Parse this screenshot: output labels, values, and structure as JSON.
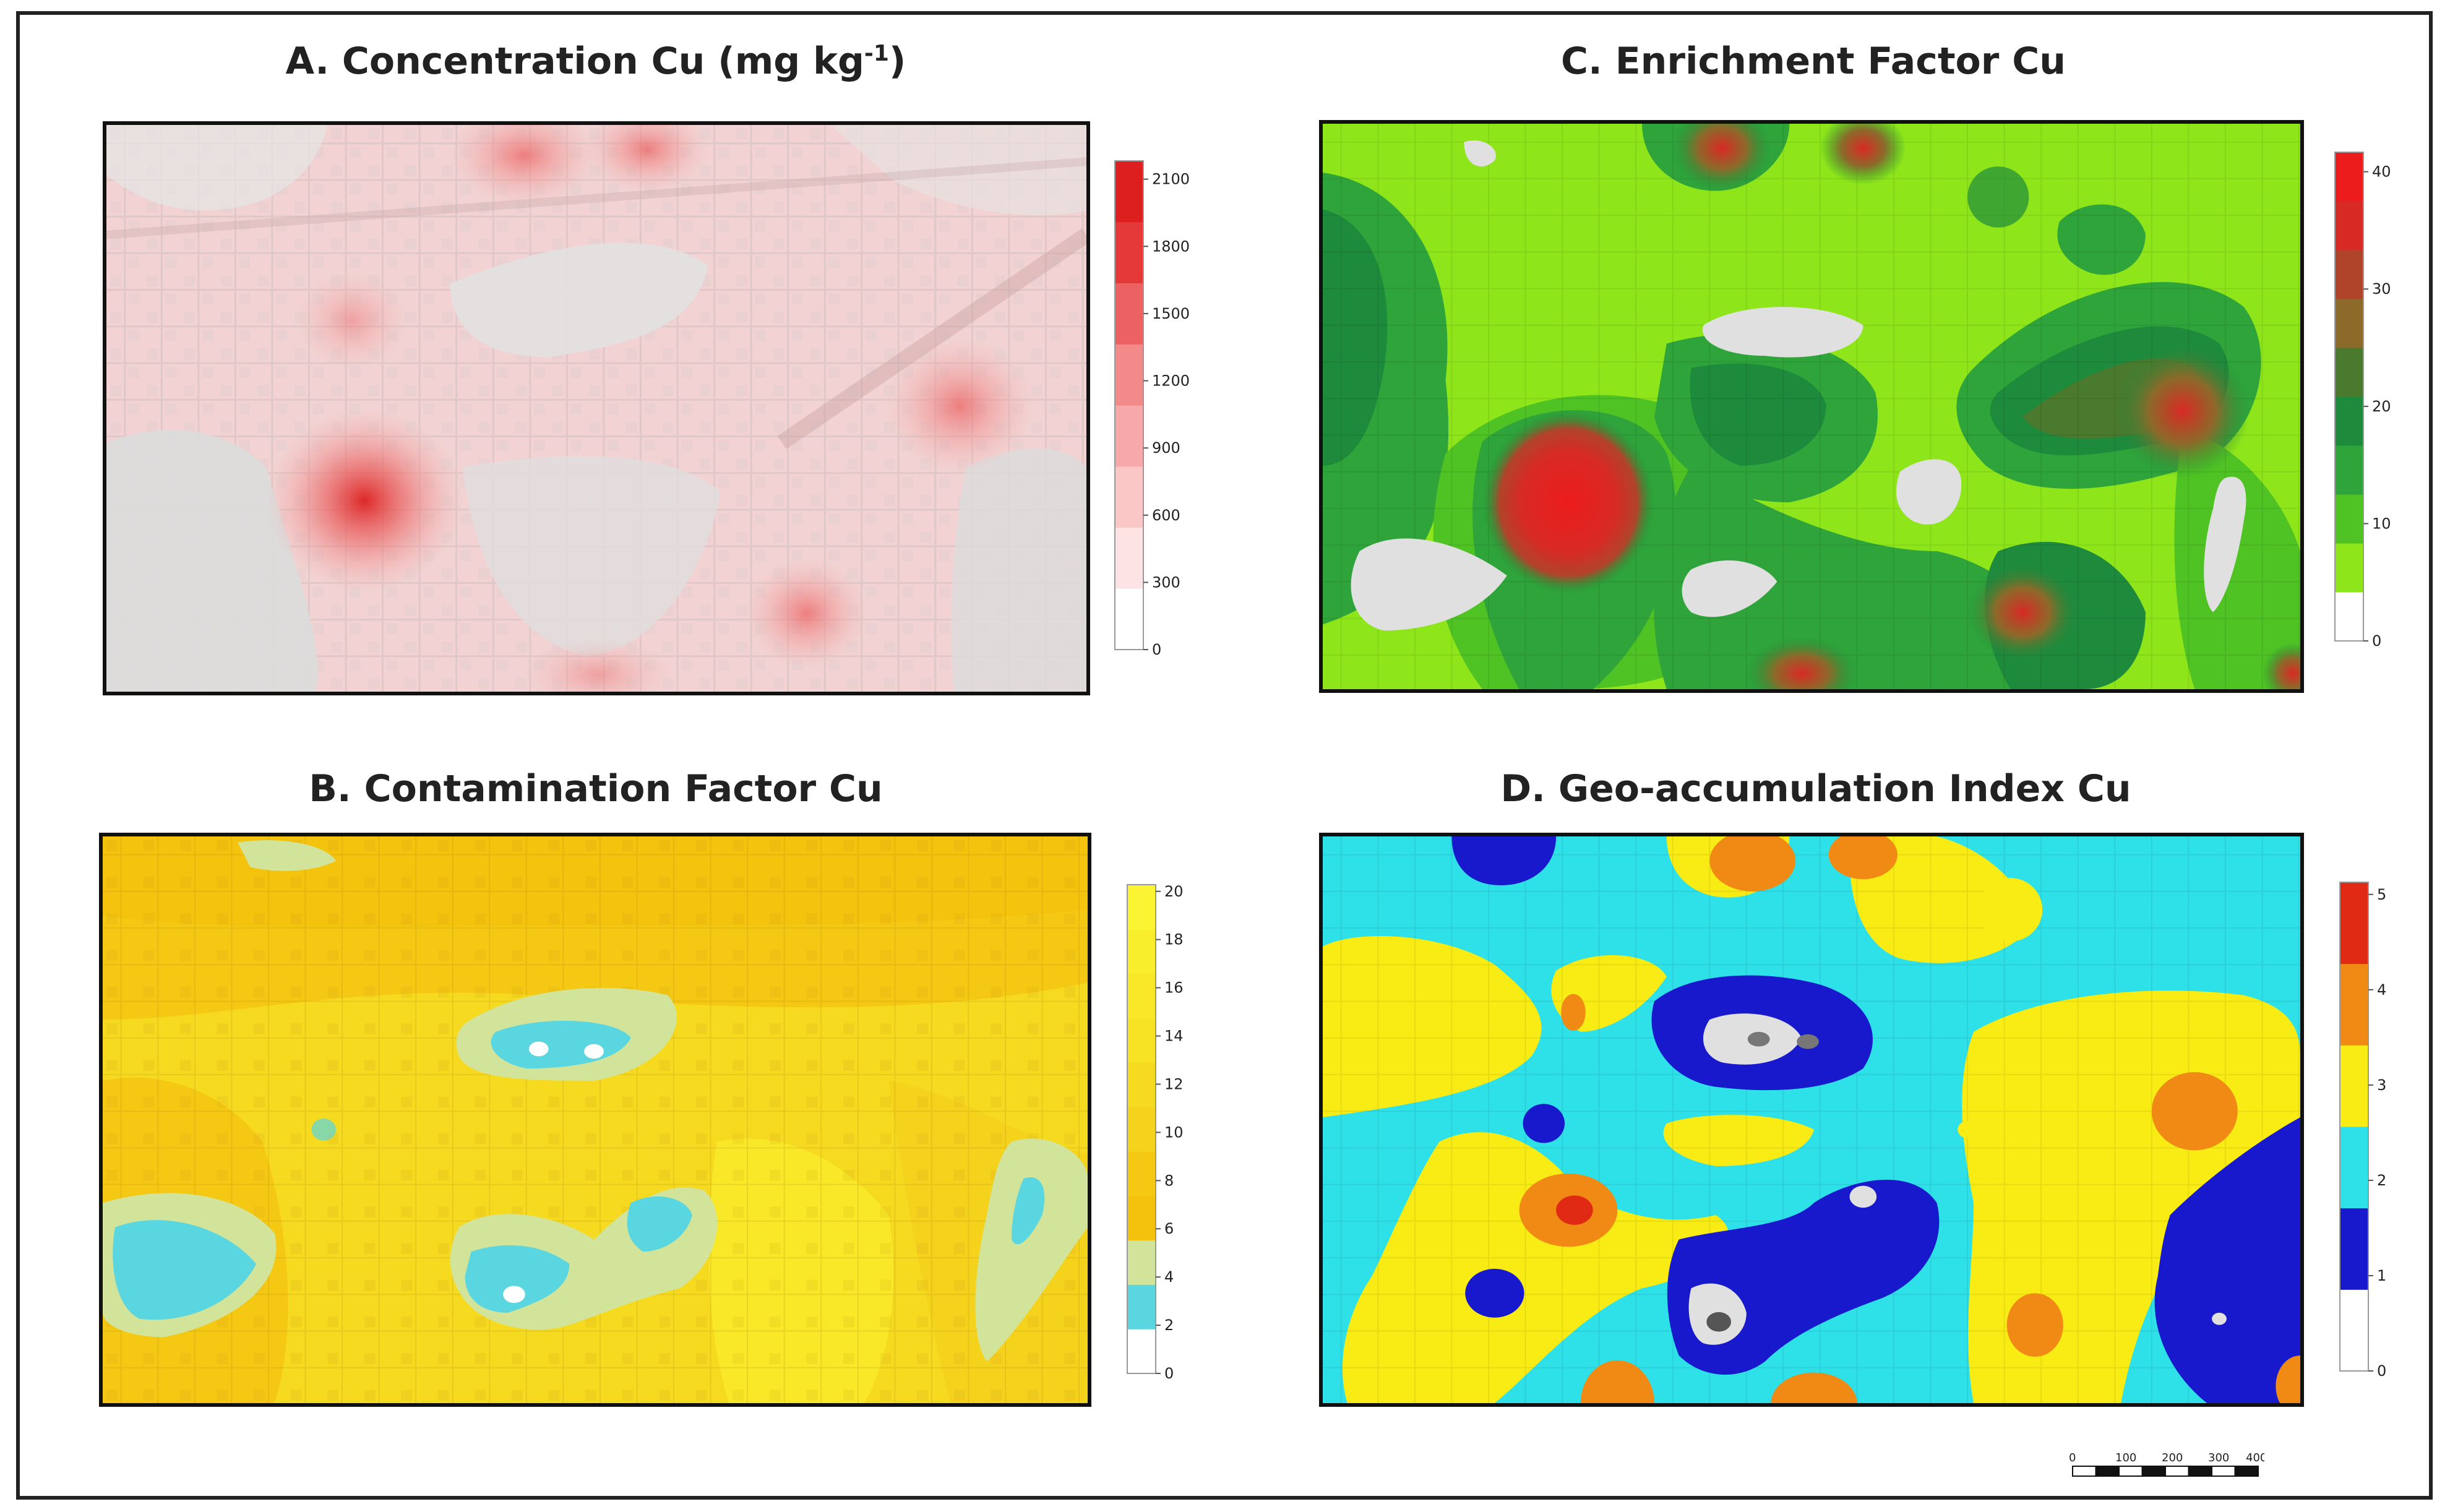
{
  "panels": {
    "A": {
      "title": "A. Concentration Cu (mg kg",
      "title_sup": "-1",
      "title_close": ")",
      "legend_ticks": [
        "0",
        "300",
        "600",
        "900",
        "1200",
        "1500",
        "1800",
        "2100"
      ],
      "legend_colors": [
        "#ffffff",
        "#fde3e3",
        "#fbc6c6",
        "#f7a8a8",
        "#f28a8a",
        "#ec6262",
        "#e53939",
        "#dd1f1f"
      ]
    },
    "B": {
      "title": "B. Contamination Factor Cu",
      "legend_ticks": [
        "0",
        "2",
        "4",
        "6",
        "8",
        "10",
        "12",
        "14",
        "16",
        "18",
        "20"
      ],
      "legend_colors": [
        "#ffffff",
        "#5ad6e0",
        "#d2e49a",
        "#f4c20c",
        "#f5c814",
        "#f5d21c",
        "#f6da20",
        "#f7e224",
        "#f8e828",
        "#f9ee2c",
        "#fbf432"
      ]
    },
    "C": {
      "title": "C. Enrichment Factor Cu",
      "legend_ticks": [
        "0",
        "10",
        "20",
        "30",
        "40"
      ],
      "legend_colors": [
        "#ffffff",
        "#8ee61a",
        "#4fc224",
        "#2fa43a",
        "#1e8a3c",
        "#4a7a2e",
        "#8c6a2a",
        "#b0442a",
        "#d82a24",
        "#ec1c1c"
      ]
    },
    "D": {
      "title": "D. Geo-accumulation Index Cu",
      "legend_ticks": [
        "0",
        "1",
        "2",
        "3",
        "4",
        "5"
      ],
      "legend_colors": [
        "#ffffff",
        "#1818cc",
        "#2ee0e8",
        "#f8ec14",
        "#f08a14",
        "#e02a14"
      ]
    }
  },
  "scale_bar": {
    "labels": [
      "0",
      "100",
      "200",
      "300",
      "400 m"
    ]
  }
}
